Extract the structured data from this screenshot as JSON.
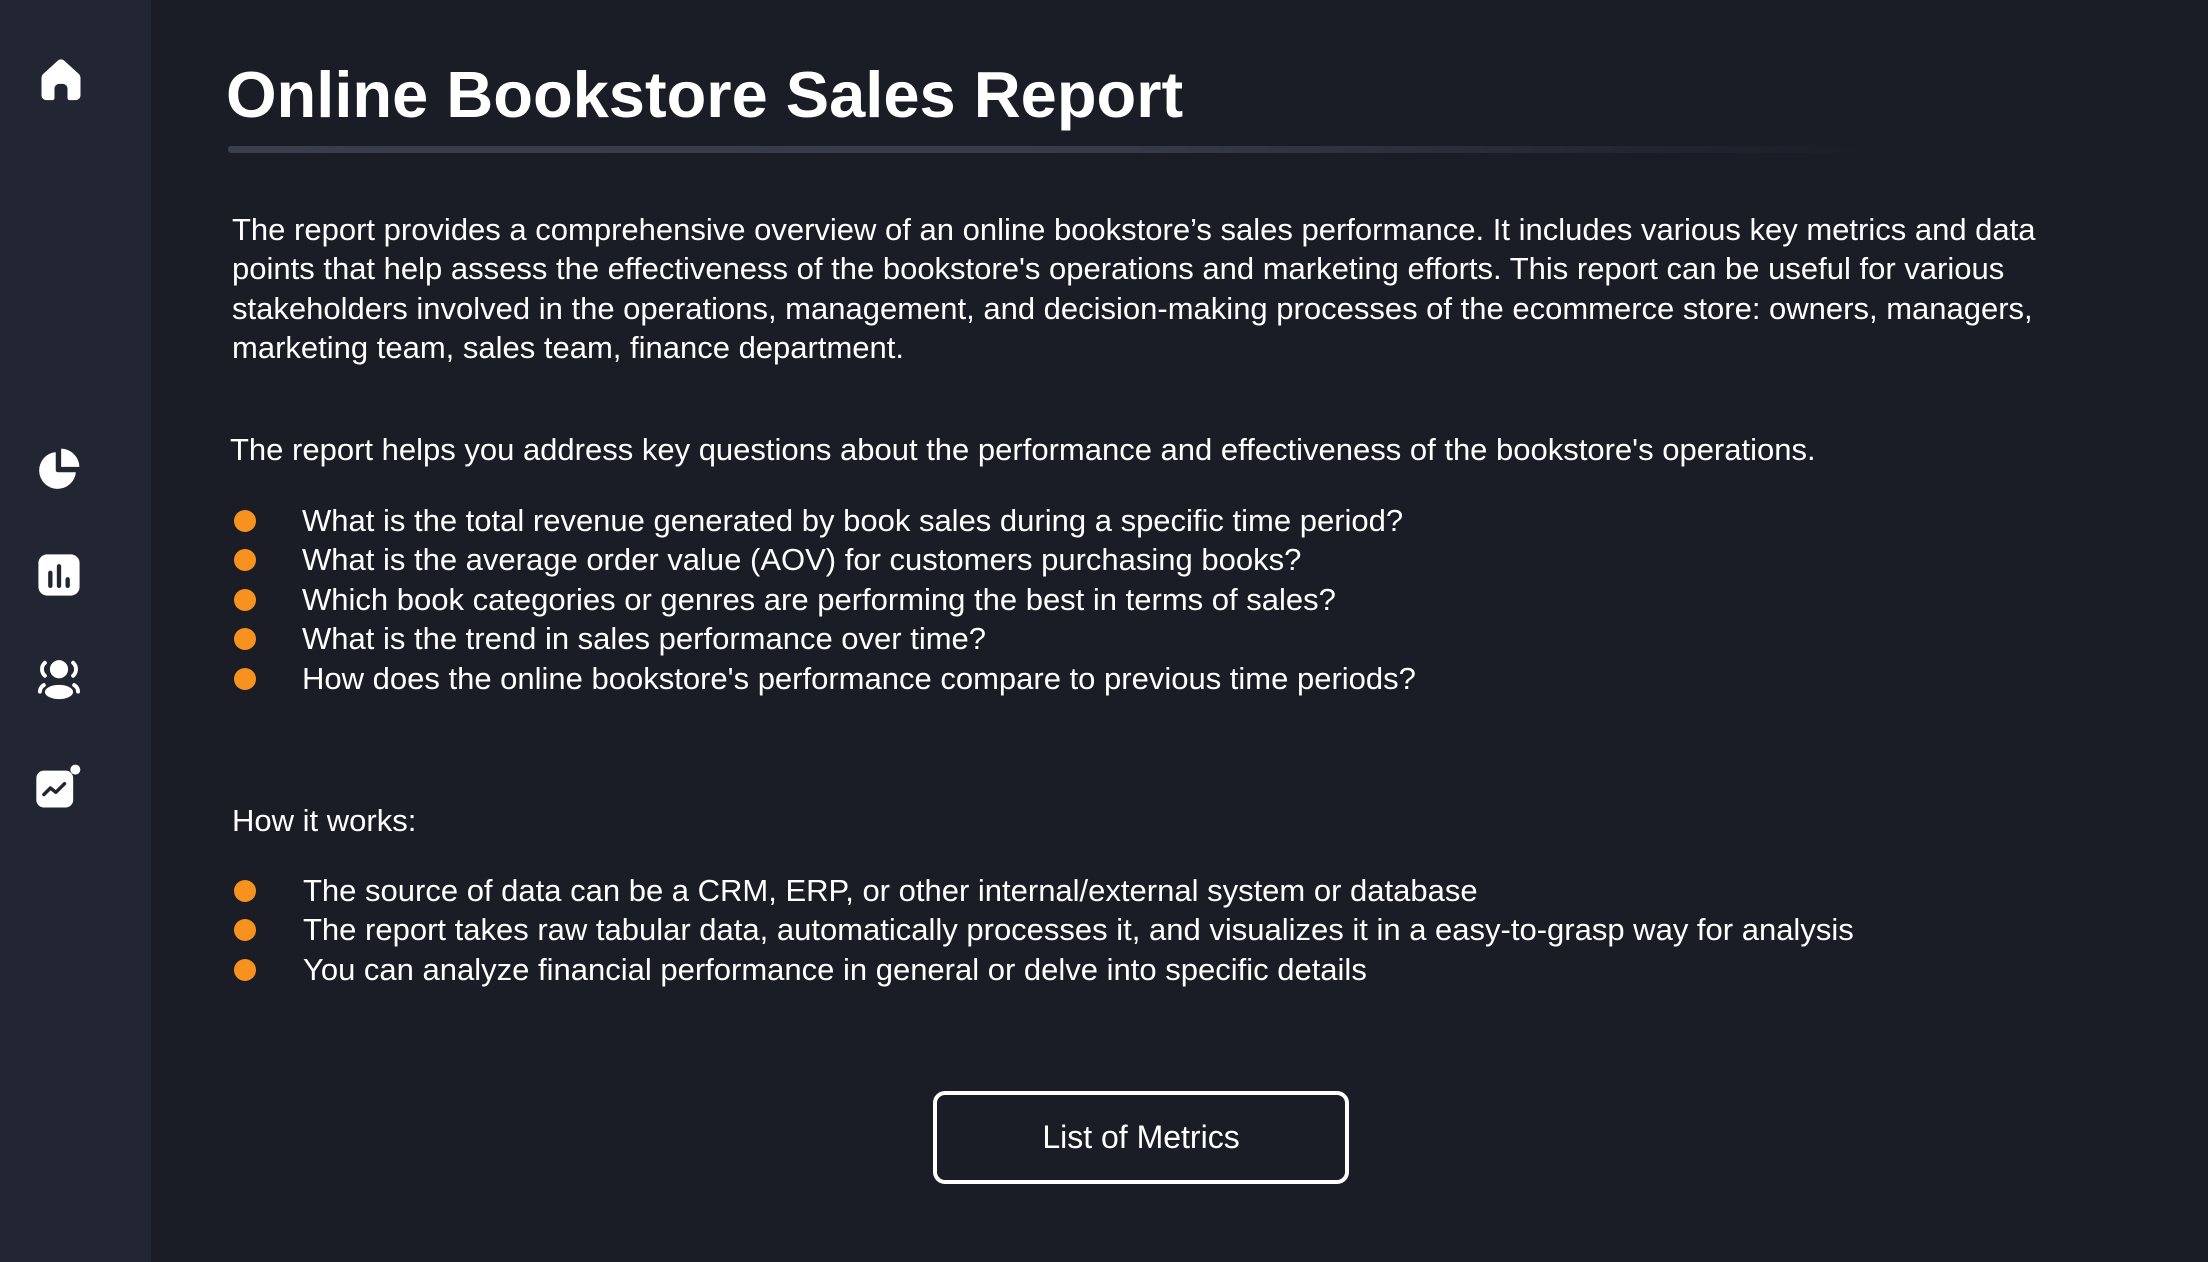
{
  "sidebar": {
    "icons": [
      "home-icon",
      "pie-chart-icon",
      "bar-chart-icon",
      "users-icon",
      "trend-chart-icon"
    ]
  },
  "header": {
    "title": "Online Bookstore Sales Report"
  },
  "main": {
    "intro": "The report provides a comprehensive overview of an online bookstore’s sales performance. It includes various key metrics and data points that help assess the effectiveness of the bookstore's operations and marketing efforts. This report can be useful for various stakeholders involved in the operations, management, and decision-making processes of the ecommerce store: owners, managers, marketing team, sales team, finance department.",
    "questions_intro": "The report helps you address key questions about the performance and effectiveness of the bookstore's operations.",
    "questions": [
      "What is the total revenue generated by book sales during a specific time period?",
      "What is the average order value (AOV) for customers purchasing books?",
      "Which book categories or genres are performing the best in terms of sales?",
      "What is the trend in sales performance over time?",
      "How does the online bookstore's performance compare to previous time periods?"
    ],
    "how_it_works_label": "How it works:",
    "how_it_works": [
      "The source of data can be a CRM, ERP, or other internal/external system or database",
      "The report takes raw tabular data, automatically processes it, and visualizes it in a easy-to-grasp way for analysis",
      "You can analyze financial performance in general or delve into specific details"
    ],
    "button_label": "List of Metrics"
  },
  "colors": {
    "bullet": "#f7921e",
    "sidebar": "#222633",
    "background": "#1a1d26"
  }
}
